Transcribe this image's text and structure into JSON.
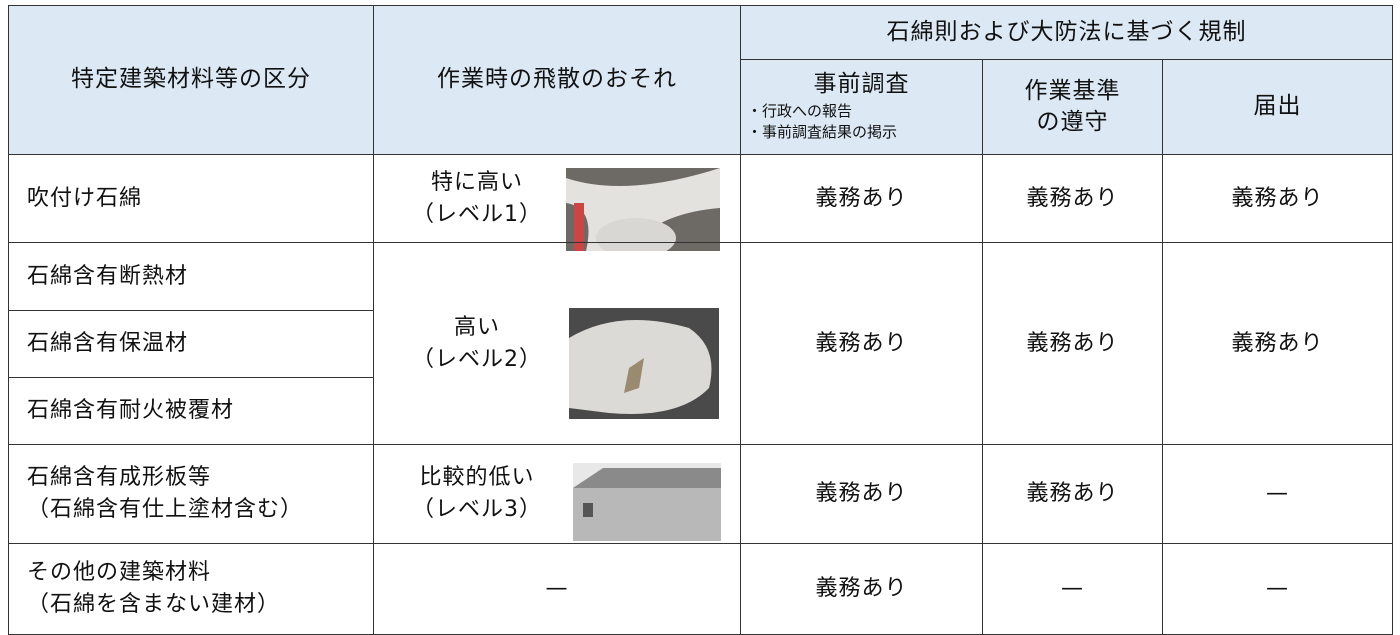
{
  "table": {
    "header": {
      "group": "石綿則および大防法に基づく規制",
      "columns": [
        "特定建築材料等の区分",
        "作業時の飛散のおそれ",
        {
          "title": "事前調査",
          "notes": [
            "・行政への報告",
            "・事前調査結果の掲示"
          ]
        },
        [
          "作業基準",
          "の遵守"
        ],
        "届出"
      ]
    },
    "rows": [
      {
        "materials": [
          "吹付け石綿"
        ],
        "risk": [
          "特に高い",
          "（レベル1）"
        ],
        "survey": "義務あり",
        "standard": "義務あり",
        "notice": "義務あり"
      },
      {
        "materials": [
          "石綿含有断熱材",
          "石綿含有保温材",
          "石綿含有耐火被覆材"
        ],
        "risk": [
          "高い",
          "（レベル2）"
        ],
        "survey": "義務あり",
        "standard": "義務あり",
        "notice": "義務あり"
      },
      {
        "materials": [
          "石綿含有成形板等",
          "（石綿含有仕上塗材含む）"
        ],
        "risk": [
          "比較的低い",
          "（レベル3）"
        ],
        "survey": "義務あり",
        "standard": "義務あり",
        "notice": "—"
      },
      {
        "materials": [
          "その他の建築材料",
          "（石綿を含まない建材）"
        ],
        "risk": [
          "—"
        ],
        "survey": "義務あり",
        "standard": "—",
        "notice": "—"
      }
    ]
  }
}
